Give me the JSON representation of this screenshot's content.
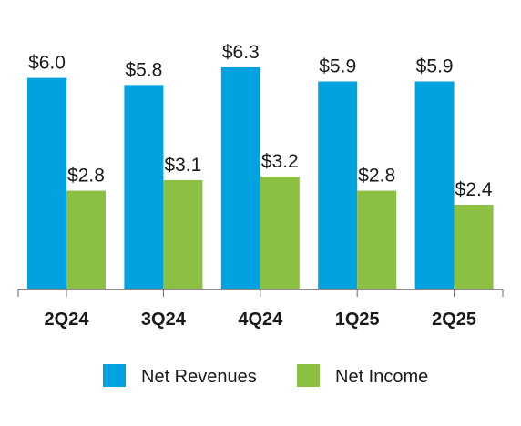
{
  "chart_data": {
    "type": "bar",
    "categories": [
      "2Q24",
      "3Q24",
      "4Q24",
      "1Q25",
      "2Q25"
    ],
    "series": [
      {
        "name": "Net Revenues",
        "values": [
          6.0,
          5.8,
          6.3,
          5.9,
          5.9
        ],
        "labels": [
          "$6.0",
          "$5.8",
          "$6.3",
          "$5.9",
          "$5.9"
        ],
        "color": "#00a3e0"
      },
      {
        "name": "Net Income",
        "values": [
          2.8,
          3.1,
          3.2,
          2.8,
          2.4
        ],
        "labels": [
          "$2.8",
          "$3.1",
          "$3.2",
          "$2.8",
          "$2.4"
        ],
        "color": "#8cc043"
      }
    ],
    "title": "",
    "xlabel": "",
    "ylabel": "",
    "ylim": [
      0,
      6.3
    ],
    "grid": false,
    "legend_position": "bottom-center",
    "axis_color": "#666666"
  }
}
